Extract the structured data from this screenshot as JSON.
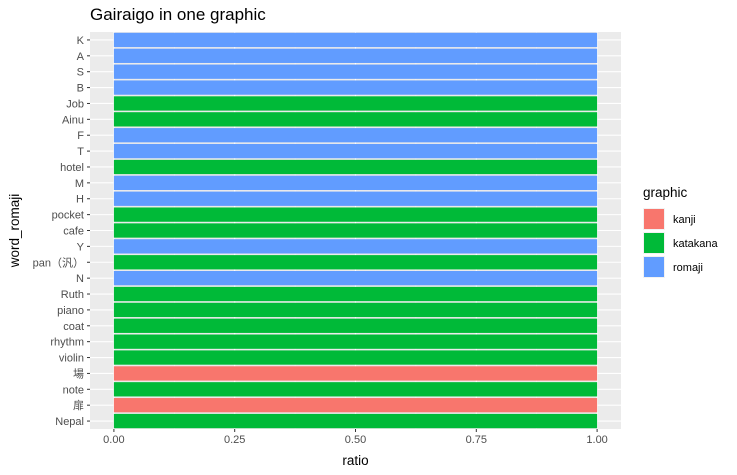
{
  "chart_data": {
    "type": "bar",
    "orientation": "horizontal",
    "stacked": true,
    "title": "Gairaigo in one graphic",
    "xlabel": "ratio",
    "ylabel": "word_romaji",
    "xlim": [
      0,
      1
    ],
    "x_ticks": [
      "0.00",
      "0.25",
      "0.50",
      "0.75",
      "1.00"
    ],
    "x_tick_values": [
      0,
      0.25,
      0.5,
      0.75,
      1.0
    ],
    "grid": true,
    "legend": {
      "title": "graphic",
      "placement": "right",
      "entries": [
        {
          "label": "kanji",
          "color": "#F8766D"
        },
        {
          "label": "katakana",
          "color": "#00BA38"
        },
        {
          "label": "romaji",
          "color": "#619CFF"
        }
      ]
    },
    "categories": [
      "K",
      "A",
      "S",
      "B",
      "Job",
      "Ainu",
      "F",
      "T",
      "hotel",
      "M",
      "H",
      "pocket",
      "cafe",
      "Y",
      "pan（汎）",
      "N",
      "Ruth",
      "piano",
      "coat",
      "rhythm",
      "violin",
      "場",
      "note",
      "扉",
      "Nepal"
    ],
    "series": [
      {
        "name": "kanji",
        "color": "#F8766D",
        "values": [
          0,
          0,
          0,
          0,
          0,
          0,
          0,
          0,
          0,
          0,
          0,
          0,
          0,
          0,
          0,
          0,
          0,
          0,
          0,
          0,
          0,
          1,
          0,
          1,
          0
        ]
      },
      {
        "name": "katakana",
        "color": "#00BA38",
        "values": [
          0,
          0,
          0,
          0,
          1,
          1,
          0,
          0,
          1,
          0,
          0,
          1,
          1,
          0,
          1,
          0,
          1,
          1,
          1,
          1,
          1,
          0,
          1,
          0,
          1
        ]
      },
      {
        "name": "romaji",
        "color": "#619CFF",
        "values": [
          1,
          1,
          1,
          1,
          0,
          0,
          1,
          1,
          0,
          1,
          1,
          0,
          0,
          1,
          0,
          1,
          0,
          0,
          0,
          0,
          0,
          0,
          0,
          0,
          0
        ]
      }
    ]
  }
}
